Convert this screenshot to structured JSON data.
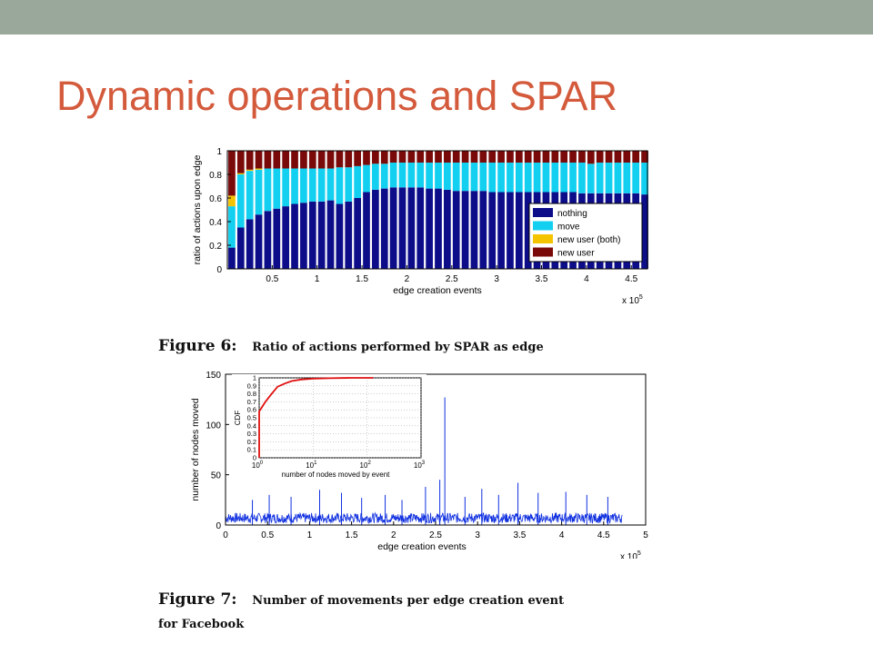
{
  "slide": {
    "title": "Dynamic operations and SPAR",
    "fig6_caption_label": "Figure 6:",
    "fig6_caption_text": "Ratio of actions performed by SPAR as edge",
    "fig7_caption_label": "Figure 7:",
    "fig7_caption_text": "Number of movements per edge creation event",
    "fig7_caption_line2": "for Facebook"
  },
  "chart_data": [
    {
      "type": "bar",
      "stacked": true,
      "xlabel": "edge creation events",
      "ylabel": "ratio of actions upon edge",
      "x_multiplier": "x 10^5",
      "x_multiplier_base": "x 10",
      "x_multiplier_exp": "5",
      "xlim": [
        0,
        4.68
      ],
      "ylim": [
        0,
        1
      ],
      "xticks": [
        "0.5",
        "1",
        "1.5",
        "2",
        "2.5",
        "3",
        "3.5",
        "4",
        "4.5"
      ],
      "yticks": [
        "0",
        "0.2",
        "0.4",
        "0.6",
        "0.8",
        "1"
      ],
      "legend_position": "lower-right",
      "bar_width": 0.1,
      "x_start": 0.05,
      "series": [
        {
          "name": "nothing",
          "color": "#0d0d8a",
          "values": [
            0.18,
            0.35,
            0.42,
            0.46,
            0.49,
            0.51,
            0.53,
            0.55,
            0.56,
            0.57,
            0.57,
            0.58,
            0.55,
            0.57,
            0.6,
            0.65,
            0.67,
            0.68,
            0.69,
            0.69,
            0.69,
            0.69,
            0.68,
            0.68,
            0.67,
            0.66,
            0.66,
            0.66,
            0.66,
            0.65,
            0.65,
            0.65,
            0.65,
            0.65,
            0.65,
            0.65,
            0.65,
            0.65,
            0.65,
            0.64,
            0.64,
            0.64,
            0.64,
            0.64,
            0.64,
            0.64,
            0.63
          ]
        },
        {
          "name": "move",
          "color": "#13d0f0",
          "values": [
            0.35,
            0.45,
            0.41,
            0.38,
            0.36,
            0.34,
            0.32,
            0.3,
            0.29,
            0.28,
            0.28,
            0.27,
            0.31,
            0.29,
            0.27,
            0.23,
            0.22,
            0.21,
            0.21,
            0.21,
            0.21,
            0.21,
            0.22,
            0.22,
            0.23,
            0.24,
            0.24,
            0.24,
            0.24,
            0.25,
            0.25,
            0.25,
            0.25,
            0.25,
            0.25,
            0.25,
            0.25,
            0.25,
            0.25,
            0.26,
            0.25,
            0.26,
            0.26,
            0.26,
            0.26,
            0.26,
            0.27
          ]
        },
        {
          "name": "new user (both)",
          "color": "#f5c400",
          "values": [
            0.09,
            0.01,
            0.01,
            0.01,
            0.0,
            0.0,
            0.0,
            0.0,
            0.0,
            0.0,
            0.0,
            0.0,
            0.0,
            0.0,
            0.0,
            0.0,
            0.0,
            0.0,
            0.0,
            0.0,
            0.0,
            0.0,
            0.0,
            0.0,
            0.0,
            0.0,
            0.0,
            0.0,
            0.0,
            0.0,
            0.0,
            0.0,
            0.0,
            0.0,
            0.0,
            0.0,
            0.0,
            0.0,
            0.0,
            0.0,
            0.0,
            0.0,
            0.0,
            0.0,
            0.0,
            0.0,
            0.0
          ]
        },
        {
          "name": "new user",
          "color": "#7a0a0a",
          "values": [
            0.38,
            0.19,
            0.16,
            0.15,
            0.15,
            0.15,
            0.15,
            0.15,
            0.15,
            0.15,
            0.15,
            0.15,
            0.14,
            0.14,
            0.13,
            0.12,
            0.11,
            0.11,
            0.1,
            0.1,
            0.1,
            0.1,
            0.1,
            0.1,
            0.1,
            0.1,
            0.1,
            0.1,
            0.1,
            0.1,
            0.1,
            0.1,
            0.1,
            0.1,
            0.1,
            0.1,
            0.1,
            0.1,
            0.1,
            0.1,
            0.11,
            0.1,
            0.1,
            0.1,
            0.1,
            0.1,
            0.1
          ]
        }
      ]
    },
    {
      "type": "line",
      "xlabel": "edge creation events",
      "ylabel": "number of nodes moved",
      "x_multiplier": "x 10^5",
      "x_multiplier_base": "x 10",
      "x_multiplier_exp": "5",
      "xlim": [
        0,
        5
      ],
      "ylim": [
        0,
        150
      ],
      "xticks": [
        "0",
        "0.5",
        "1",
        "1.5",
        "2",
        "2.5",
        "3",
        "3.5",
        "4",
        "4.5",
        "5"
      ],
      "yticks": [
        "0",
        "50",
        "100",
        "150"
      ],
      "color": "#1030e0",
      "baseline_range": [
        2,
        12
      ],
      "data_extent": [
        0,
        4.72
      ],
      "spikes": [
        {
          "x": 0.32,
          "y": 25
        },
        {
          "x": 0.52,
          "y": 30
        },
        {
          "x": 0.78,
          "y": 28
        },
        {
          "x": 1.12,
          "y": 35
        },
        {
          "x": 1.38,
          "y": 32
        },
        {
          "x": 1.62,
          "y": 27
        },
        {
          "x": 1.9,
          "y": 30
        },
        {
          "x": 2.1,
          "y": 25
        },
        {
          "x": 2.38,
          "y": 38
        },
        {
          "x": 2.55,
          "y": 45
        },
        {
          "x": 2.61,
          "y": 127
        },
        {
          "x": 2.85,
          "y": 28
        },
        {
          "x": 3.05,
          "y": 36
        },
        {
          "x": 3.25,
          "y": 30
        },
        {
          "x": 3.48,
          "y": 42
        },
        {
          "x": 3.72,
          "y": 32
        },
        {
          "x": 4.05,
          "y": 33
        },
        {
          "x": 4.3,
          "y": 30
        },
        {
          "x": 4.55,
          "y": 28
        }
      ],
      "inset": {
        "type": "line",
        "xlabel": "number of nodes moved by event",
        "ylabel": "CDF",
        "x_scale": "log",
        "xlim": [
          1,
          1000
        ],
        "ylim": [
          0,
          1
        ],
        "xtick_base": "10",
        "xtick_exponents": [
          "0",
          "1",
          "2",
          "3"
        ],
        "yticks": [
          "0",
          "0.1",
          "0.2",
          "0.3",
          "0.4",
          "0.5",
          "0.6",
          "0.7",
          "0.8",
          "0.9",
          "1"
        ],
        "color": "#e01010",
        "points": [
          {
            "x": 1.0,
            "y": 0.0
          },
          {
            "x": 1.0,
            "y": 0.58
          },
          {
            "x": 1.3,
            "y": 0.7
          },
          {
            "x": 1.7,
            "y": 0.8
          },
          {
            "x": 2.2,
            "y": 0.89
          },
          {
            "x": 3,
            "y": 0.93
          },
          {
            "x": 4,
            "y": 0.96
          },
          {
            "x": 6,
            "y": 0.98
          },
          {
            "x": 10,
            "y": 0.99
          },
          {
            "x": 20,
            "y": 0.995
          },
          {
            "x": 50,
            "y": 1.0
          },
          {
            "x": 130,
            "y": 1.0
          }
        ]
      }
    }
  ]
}
